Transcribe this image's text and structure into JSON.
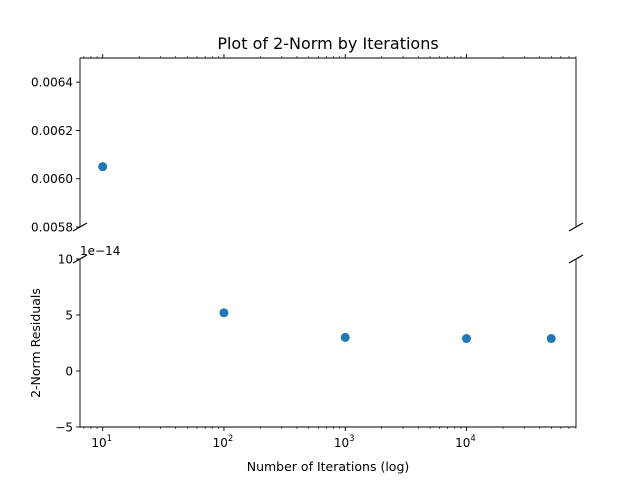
{
  "chart_data": {
    "type": "scatter",
    "title": "Plot of 2-Norm by Iterations",
    "xlabel": "Number of Iterations (log)",
    "ylabel": "2-Norm Residuals",
    "x_scale": "log",
    "x_tick_values": [
      10,
      100,
      1000,
      10000
    ],
    "x_tick_labels": [
      {
        "base": "10",
        "exp": "1"
      },
      {
        "base": "10",
        "exp": "2"
      },
      {
        "base": "10",
        "exp": "3"
      },
      {
        "base": "10",
        "exp": "4"
      }
    ],
    "x_range": [
      6.5,
      80000
    ],
    "broken_y_axis": true,
    "top_panel": {
      "ylim": [
        0.0058,
        0.0065
      ],
      "y_ticks": [
        {
          "value": 0.0058,
          "label": "0.0058"
        },
        {
          "value": 0.006,
          "label": "0.0060"
        },
        {
          "value": 0.0062,
          "label": "0.0062"
        },
        {
          "value": 0.0064,
          "label": "0.0064"
        }
      ]
    },
    "bottom_panel": {
      "ylim": [
        -5e-14,
        1e-13
      ],
      "offset_text": "1e−14",
      "y_ticks": [
        {
          "value": -5e-14,
          "label": "−5"
        },
        {
          "value": 0,
          "label": "0"
        },
        {
          "value": 5e-14,
          "label": "5"
        },
        {
          "value": 1e-13,
          "label": "10"
        }
      ]
    },
    "series": [
      {
        "color": "#1f77b4",
        "points": [
          {
            "x": 10,
            "y": 0.00605
          },
          {
            "x": 100,
            "y": 5.2e-14
          },
          {
            "x": 1000,
            "y": 3e-14
          },
          {
            "x": 10000,
            "y": 2.9e-14
          },
          {
            "x": 50000,
            "y": 2.9e-14
          }
        ]
      }
    ],
    "grid": false
  }
}
